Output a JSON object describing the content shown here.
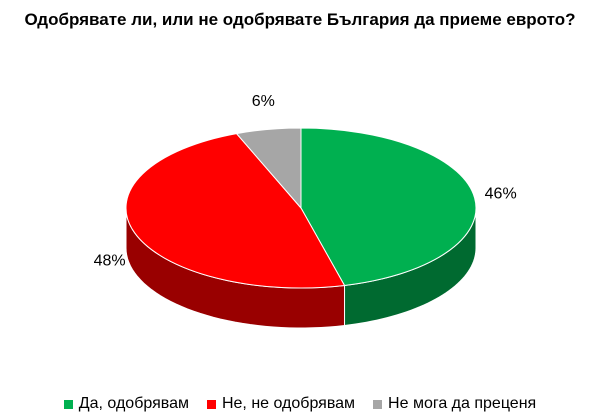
{
  "chart_data": {
    "type": "pie",
    "title": "Одобрявате ли, или не одобрявате България да приеме еврото?",
    "categories": [
      "Да, одобрявам",
      "Не, не одобрявам",
      "Не мога да преценя"
    ],
    "values": [
      46,
      48,
      6
    ],
    "value_labels": [
      "46%",
      "48%",
      "6%"
    ],
    "colors": [
      "#00b050",
      "#ff0000",
      "#a6a6a6"
    ],
    "legend": "bottom"
  }
}
